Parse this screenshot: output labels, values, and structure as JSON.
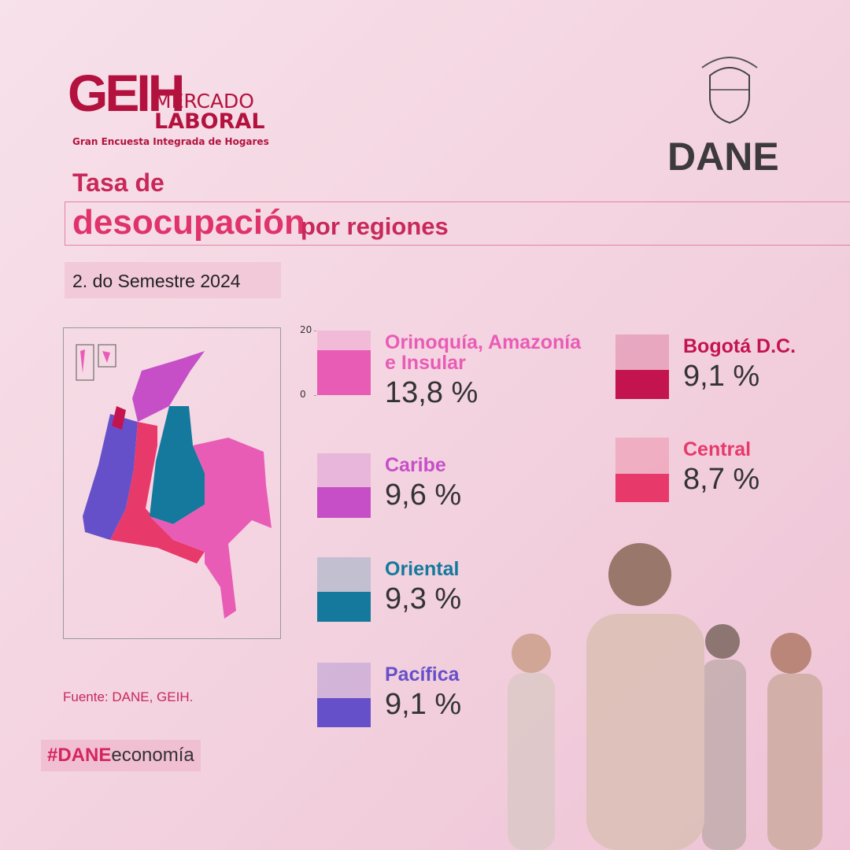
{
  "header": {
    "logo_mark": "GEIH",
    "logo_line1": "MERCADO",
    "logo_line2": "LABORAL",
    "logo_sub": "Gran Encuesta Integrada de Hogares",
    "agency": "DANE"
  },
  "title": {
    "line1": "Tasa de",
    "main": "desocupación",
    "rest": "por regiones"
  },
  "period": "2. do Semestre 2024",
  "chart_data": {
    "type": "bar",
    "categories": [
      "Orinoquía, Amazonía e Insular",
      "Caribe",
      "Oriental",
      "Pacífica",
      "Bogotá D.C.",
      "Central"
    ],
    "values": [
      13.8,
      9.6,
      9.3,
      9.1,
      9.1,
      8.7
    ],
    "value_labels": [
      "13,8 %",
      "9,6 %",
      "9,3 %",
      "9,1 %",
      "9,1 %",
      "8,7 %"
    ],
    "colors": [
      "#e95cb6",
      "#c64fc8",
      "#14799c",
      "#6650c9",
      "#c41450",
      "#e8396b"
    ],
    "ylim": [
      0,
      20
    ],
    "yticks": [
      0,
      20
    ]
  },
  "source": "Fuente: DANE, GEIH.",
  "hashtag": {
    "bold": "#DANE",
    "rest": "economía"
  }
}
